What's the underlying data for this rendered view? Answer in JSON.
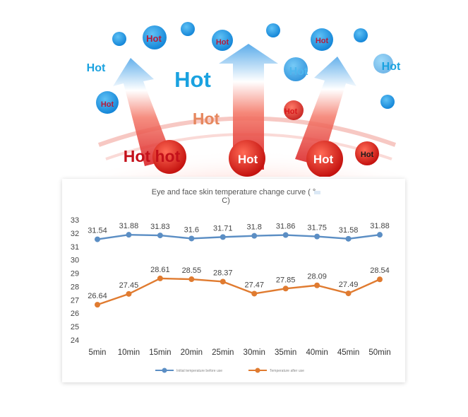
{
  "illustration": {
    "labels": [
      "Hot",
      "Hot",
      "Hot",
      "Hot",
      "Hot",
      "Hot",
      "Hot",
      "Hot",
      "Hot",
      "Hot",
      "Hot hot",
      "Hot",
      "Hot",
      "Hot"
    ]
  },
  "chart_data": {
    "type": "line",
    "title_line1": "Eye and face skin temperature change curve ( °",
    "title_line2": "C)",
    "categories": [
      "5min",
      "10min",
      "15min",
      "20min",
      "25min",
      "30min",
      "35min",
      "40min",
      "45min",
      "50min"
    ],
    "ylim": [
      24,
      33
    ],
    "yticks": [
      "24",
      "25",
      "26",
      "27",
      "28",
      "29",
      "30",
      "31",
      "32",
      "33"
    ],
    "grid": false,
    "legend_position": "bottom",
    "series": [
      {
        "name": "Initial temperature before use",
        "color": "#5b8ec4",
        "values": [
          31.54,
          31.88,
          31.83,
          31.6,
          31.71,
          31.8,
          31.86,
          31.75,
          31.58,
          31.88
        ],
        "labels": [
          "31.54",
          "31.88",
          "31.83",
          "31.6",
          "31.71",
          "31.8",
          "31.86",
          "31.75",
          "31.58",
          "31.88"
        ]
      },
      {
        "name": "Temperature after use",
        "color": "#e07b30",
        "values": [
          26.64,
          27.45,
          28.61,
          28.55,
          28.37,
          27.47,
          27.85,
          28.09,
          27.49,
          28.54
        ],
        "labels": [
          "26.64",
          "27.45",
          "28.61",
          "28.55",
          "28.37",
          "27.47",
          "27.85",
          "28.09",
          "27.49",
          "28.54"
        ]
      }
    ]
  }
}
